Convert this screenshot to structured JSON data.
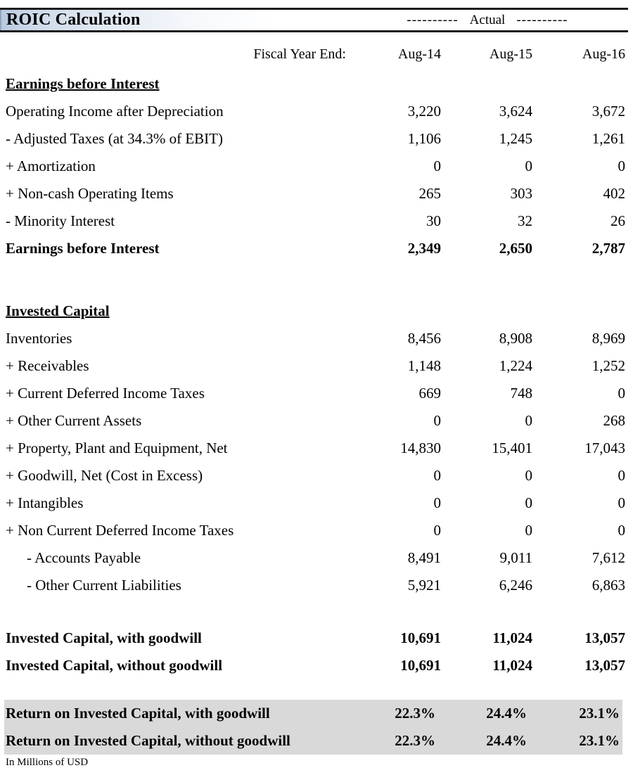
{
  "header": {
    "title": "ROIC Calculation",
    "actual_dashes": "----------",
    "actual_label": "Actual",
    "fiscal_year_label": "Fiscal Year End:",
    "columns": [
      "Aug-14",
      "Aug-15",
      "Aug-16"
    ]
  },
  "colors": {
    "title_gradient_start": "#b7c8de",
    "title_gradient_end": "#ffffff",
    "border_black": "#1c1c1c",
    "roic_band_gray": "#d9d9d9"
  },
  "rows": [
    {
      "label": "Earnings before Interest",
      "values": [
        "",
        "",
        ""
      ]
    },
    {
      "label": "Operating Income after Depreciation",
      "values": [
        "3,220",
        "3,624",
        "3,672"
      ]
    },
    {
      "label": "- Adjusted Taxes (at 34.3% of EBIT)",
      "values": [
        "1,106",
        "1,245",
        "1,261"
      ]
    },
    {
      "label": "+ Amortization",
      "values": [
        "0",
        "0",
        "0"
      ]
    },
    {
      "label": "+ Non-cash Operating Items",
      "values": [
        "265",
        "303",
        "402"
      ]
    },
    {
      "label": "- Minority Interest",
      "values": [
        "30",
        "32",
        "26"
      ]
    },
    {
      "label": "Earnings before Interest",
      "values": [
        "2,349",
        "2,650",
        "2,787"
      ]
    },
    {
      "label": "Invested Capital",
      "values": [
        "",
        "",
        ""
      ]
    },
    {
      "label": "Inventories",
      "values": [
        "8,456",
        "8,908",
        "8,969"
      ]
    },
    {
      "label": "+ Receivables",
      "values": [
        "1,148",
        "1,224",
        "1,252"
      ]
    },
    {
      "label": "+ Current Deferred Income Taxes",
      "values": [
        "669",
        "748",
        "0"
      ]
    },
    {
      "label": "+ Other Current Assets",
      "values": [
        "0",
        "0",
        "268"
      ]
    },
    {
      "label": "+ Property, Plant and Equipment, Net",
      "values": [
        "14,830",
        "15,401",
        "17,043"
      ]
    },
    {
      "label": "+ Goodwill, Net (Cost in Excess)",
      "values": [
        "0",
        "0",
        "0"
      ]
    },
    {
      "label": "+ Intangibles",
      "values": [
        "0",
        "0",
        "0"
      ]
    },
    {
      "label": "+ Non Current Deferred Income Taxes",
      "values": [
        "0",
        "0",
        "0"
      ]
    },
    {
      "label": "- Accounts Payable",
      "values": [
        "8,491",
        "9,011",
        "7,612"
      ]
    },
    {
      "label": "- Other Current Liabilities",
      "values": [
        "5,921",
        "6,246",
        "6,863"
      ]
    },
    {
      "label": "Invested Capital, with goodwill",
      "values": [
        "10,691",
        "11,024",
        "13,057"
      ]
    },
    {
      "label": "Invested Capital, without goodwill",
      "values": [
        "10,691",
        "11,024",
        "13,057"
      ]
    },
    {
      "label": "Return on Invested Capital, with goodwill",
      "values": [
        "22.3%",
        "24.4%",
        "23.1%"
      ]
    },
    {
      "label": "Return on Invested Capital, without goodwill",
      "values": [
        "22.3%",
        "24.4%",
        "23.1%"
      ]
    }
  ],
  "footnote": "In Millions of USD"
}
